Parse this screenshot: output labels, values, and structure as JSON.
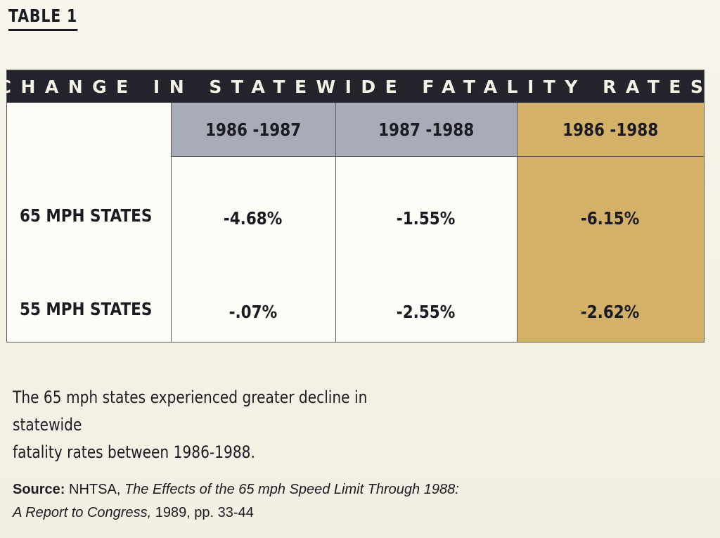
{
  "label": "TABLE 1",
  "table": {
    "title": "CHANGE IN STATEWIDE FATALITY RATES",
    "columns": [
      "1986 -1987",
      "1987 -1988",
      "1986 -1988"
    ],
    "rows": [
      {
        "label": "65 MPH STATES",
        "values": [
          "-4.68%",
          "-1.55%",
          "-6.15%"
        ]
      },
      {
        "label": "55 MPH STATES",
        "values": [
          "-.07%",
          "-2.55%",
          "-2.62%"
        ]
      }
    ],
    "colors": {
      "banner": "#25232b",
      "gray_band": "#a8acb8",
      "gold_band": "#d4b169"
    }
  },
  "caption": {
    "line1": "The 65 mph states experienced greater decline in statewide",
    "line2": "fatality rates between 1986-1988."
  },
  "source": {
    "label": "Source:",
    "org": "NHTSA,",
    "title_line1": "The Effects of the 65 mph Speed Limit Through 1988:",
    "title_line2": "A Report to Congress,",
    "details": "1989, pp. 33-44"
  }
}
